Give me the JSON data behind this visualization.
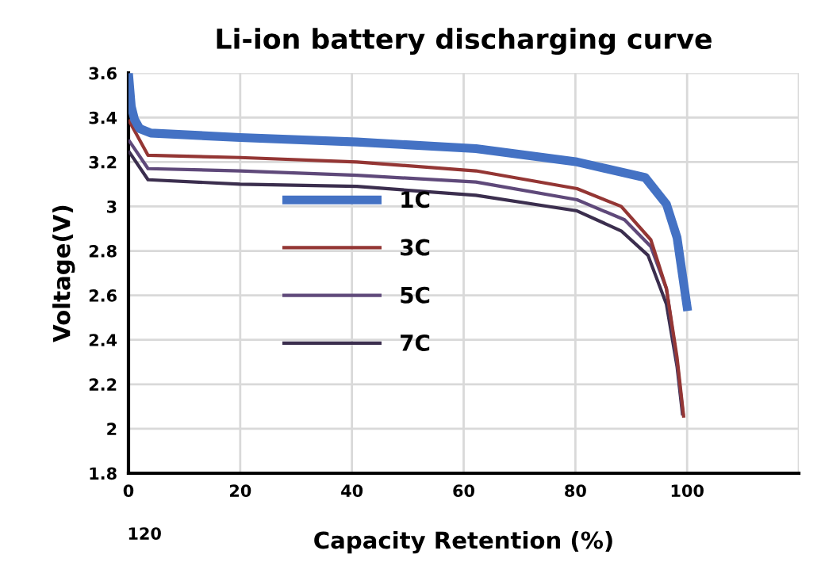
{
  "chart_data": {
    "type": "line",
    "title": "Li-ion battery discharging curve",
    "xlabel": "Capacity Retention (%)",
    "ylabel": "Voltage(V)",
    "xlim": [
      0,
      120
    ],
    "xticks": [
      0,
      20,
      40,
      60,
      80,
      100,
      {
        "value": 120,
        "label": null
      }
    ],
    "ylim": [
      1.8,
      3.6
    ],
    "yticks": [
      1.8,
      2,
      2.2,
      2.4,
      2.6,
      2.8,
      3,
      3.2,
      3.4,
      3.6
    ],
    "grid": true,
    "legend": "left",
    "marker": "none",
    "line_style": "solid",
    "annotations": [
      "120"
    ],
    "series": [
      {
        "name": "1C",
        "color": "#4472c4",
        "x": [
          0,
          0.5,
          1.1,
          2,
          4,
          20,
          40.9,
          62.2,
          80.3,
          92.5,
          96.3,
          98.2,
          100.1
        ],
        "values": [
          3.6,
          3.45,
          3.39,
          3.35,
          3.33,
          3.31,
          3.29,
          3.26,
          3.2,
          3.13,
          3.01,
          2.86,
          2.53
        ]
      },
      {
        "name": "3C",
        "color": "#943634",
        "x": [
          0,
          3.5,
          20,
          40.9,
          62.2,
          80.3,
          88.2,
          93.5,
          96.3,
          98.2,
          99.4
        ],
        "values": [
          3.39,
          3.23,
          3.22,
          3.2,
          3.16,
          3.08,
          3.0,
          2.85,
          2.63,
          2.32,
          2.05
        ]
      },
      {
        "name": "5C",
        "color": "#5f497a",
        "x": [
          0,
          3.5,
          20,
          40.9,
          62.2,
          80.3,
          88.8,
          93.5,
          96.3,
          98.2,
          99.3
        ],
        "values": [
          3.3,
          3.17,
          3.16,
          3.14,
          3.11,
          3.03,
          2.94,
          2.82,
          2.63,
          2.3,
          2.06
        ]
      },
      {
        "name": "7C",
        "color": "#3b2e4e",
        "x": [
          0,
          3.5,
          20,
          40.9,
          62.2,
          80.3,
          88.2,
          93,
          96.3,
          98.2,
          99.2
        ],
        "values": [
          3.25,
          3.12,
          3.1,
          3.09,
          3.05,
          2.98,
          2.89,
          2.78,
          2.56,
          2.28,
          2.06
        ]
      }
    ]
  }
}
